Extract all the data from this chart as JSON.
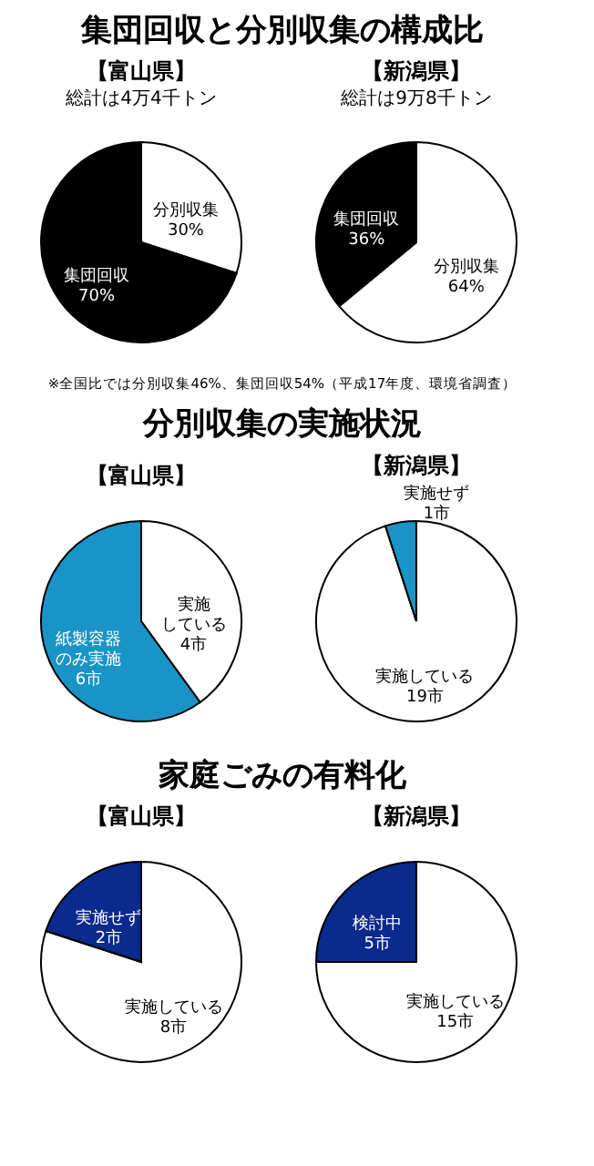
{
  "chart_data": [
    {
      "type": "other",
      "title": "集団回収と分別収集の構成比"
    },
    {
      "type": "pie",
      "title": "【富山県】",
      "subtitle": "総計は4万4千トン",
      "categories": [
        "分別収集",
        "集団回収"
      ],
      "values": [
        30,
        70
      ],
      "value_labels": [
        "30%",
        "70%"
      ],
      "colors": [
        "#ffffff",
        "#000000"
      ]
    },
    {
      "type": "pie",
      "title": "【新潟県】",
      "subtitle": "総計は9万8千トン",
      "categories": [
        "分別収集",
        "集団回収"
      ],
      "values": [
        64,
        36
      ],
      "value_labels": [
        "64%",
        "36%"
      ],
      "colors": [
        "#ffffff",
        "#000000"
      ]
    },
    {
      "type": "other",
      "annotations": [
        "※全国比では分別収集46%、集団回収54%（平成17年度、環境省調査）"
      ]
    },
    {
      "type": "other",
      "title": "分別収集の実施状況"
    },
    {
      "type": "pie",
      "title": "【富山県】",
      "categories": [
        "実施している",
        "紙製容器のみ実施"
      ],
      "values": [
        4,
        6
      ],
      "value_labels": [
        "4市",
        "6市"
      ],
      "colors": [
        "#ffffff",
        "#1a94c6"
      ]
    },
    {
      "type": "pie",
      "title": "【新潟県】",
      "categories": [
        "実施している",
        "実施せず"
      ],
      "values": [
        19,
        1
      ],
      "value_labels": [
        "19市",
        "1市"
      ],
      "colors": [
        "#ffffff",
        "#1a94c6"
      ]
    },
    {
      "type": "other",
      "title": "家庭ごみの有料化"
    },
    {
      "type": "pie",
      "title": "【富山県】",
      "categories": [
        "実施している",
        "実施せず"
      ],
      "values": [
        8,
        2
      ],
      "value_labels": [
        "8市",
        "2市"
      ],
      "colors": [
        "#ffffff",
        "#0a2a8c"
      ]
    },
    {
      "type": "pie",
      "title": "【新潟県】",
      "categories": [
        "実施している",
        "検討中"
      ],
      "values": [
        15,
        5
      ],
      "value_labels": [
        "15市",
        "5市"
      ],
      "colors": [
        "#ffffff",
        "#0a2a8c"
      ]
    }
  ]
}
